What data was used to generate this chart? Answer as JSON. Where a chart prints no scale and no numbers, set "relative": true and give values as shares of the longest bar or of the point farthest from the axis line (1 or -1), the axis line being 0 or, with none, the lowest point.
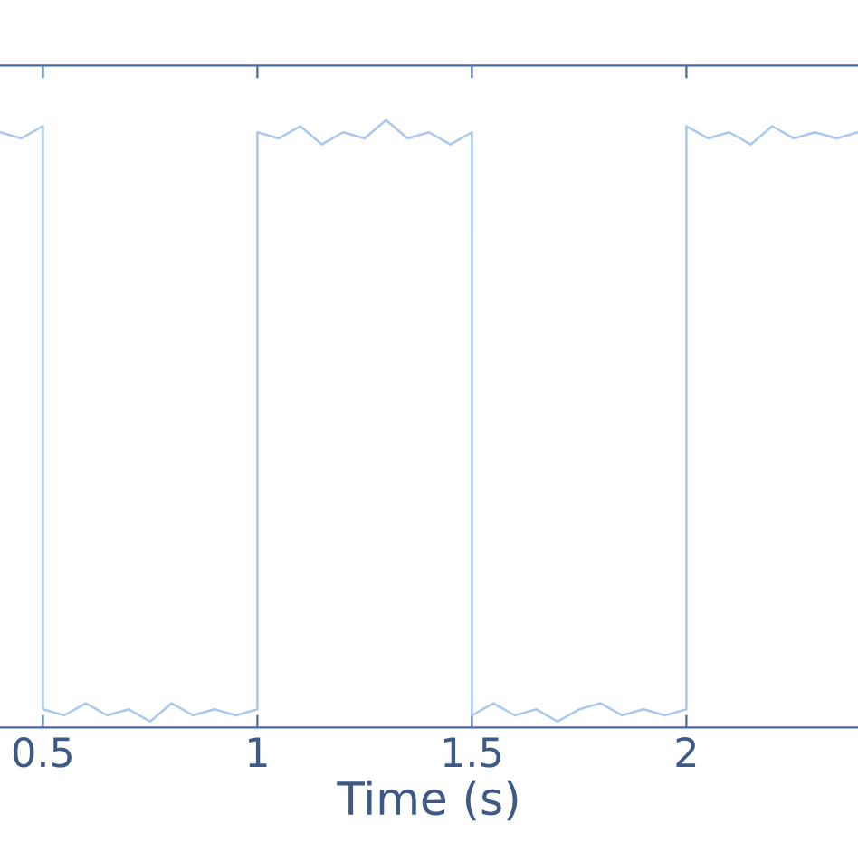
{
  "chart_data": {
    "type": "line",
    "xlabel": "Time (s)",
    "relative": true,
    "xlim": [
      0.4,
      2.4
    ],
    "xticks": [
      0.5,
      1,
      1.5,
      2
    ],
    "tick_labels": "x",
    "grid": false,
    "legend": false,
    "series": [
      {
        "color": "#a8c8ec",
        "x": [
          0.4,
          0.45,
          0.5,
          0.5,
          0.55,
          0.6,
          0.65,
          0.7,
          0.75,
          0.8,
          0.85,
          0.9,
          0.95,
          1.0,
          1.0,
          1.05,
          1.1,
          1.15,
          1.2,
          1.25,
          1.3,
          1.35,
          1.4,
          1.45,
          1.5,
          1.5,
          1.55,
          1.6,
          1.65,
          1.7,
          1.75,
          1.8,
          1.85,
          1.9,
          1.95,
          2.0,
          2.0,
          2.05,
          2.1,
          2.15,
          2.2,
          2.25,
          2.3,
          2.35,
          2.4
        ],
        "values": [
          0.98,
          0.97,
          0.99,
          0.03,
          0.02,
          0.04,
          0.02,
          0.03,
          0.01,
          0.04,
          0.02,
          0.03,
          0.02,
          0.03,
          0.98,
          0.97,
          0.99,
          0.96,
          0.98,
          0.97,
          1.0,
          0.97,
          0.98,
          0.96,
          0.98,
          0.02,
          0.04,
          0.02,
          0.03,
          0.01,
          0.03,
          0.04,
          0.02,
          0.03,
          0.02,
          0.03,
          0.99,
          0.97,
          0.98,
          0.96,
          0.99,
          0.97,
          0.98,
          0.97,
          0.98
        ]
      }
    ]
  }
}
